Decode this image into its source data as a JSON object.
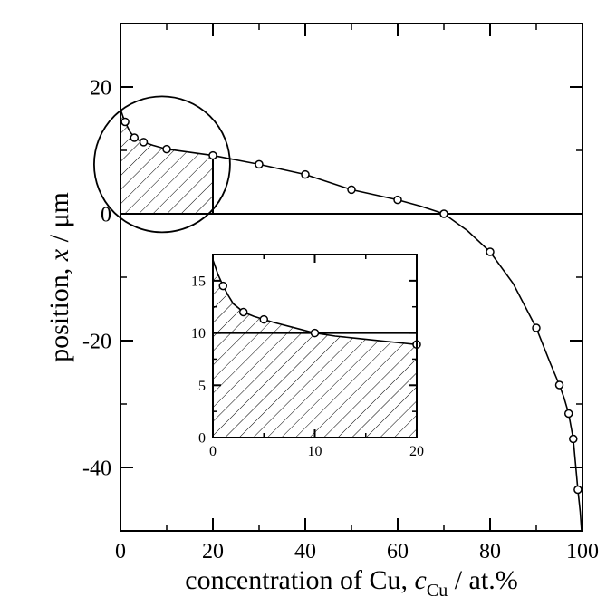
{
  "chart_data": [
    {
      "type": "line",
      "role": "main",
      "xlabel": {
        "text": "concentration of Cu, ",
        "var": "c",
        "sub": "Cu",
        "unit": " / at.%"
      },
      "ylabel": {
        "text": "position, ",
        "var": "x",
        "unit": " / μm"
      },
      "xlim": [
        0,
        100
      ],
      "ylim": [
        -50,
        30
      ],
      "xticks": [
        0,
        20,
        40,
        60,
        80,
        100
      ],
      "xtick_labels": [
        "0",
        "20",
        "40",
        "60",
        "80",
        "100"
      ],
      "yticks": [
        -40,
        -20,
        0,
        20
      ],
      "ytick_labels": [
        "-40",
        "-20",
        "0",
        "20"
      ],
      "horizontal_line": 0,
      "shaded_region": {
        "x": [
          0,
          20
        ],
        "between": "curve and y=0",
        "pattern": "diagonal hatch"
      },
      "series": [
        {
          "markers": {
            "x": [
              1,
              3,
              5,
              10,
              20,
              30,
              40,
              50,
              60,
              70,
              80,
              90,
              95,
              97,
              98,
              99
            ],
            "y": [
              14.5,
              12.0,
              11.3,
              10.2,
              9.2,
              7.8,
              6.2,
              3.8,
              2.2,
              0,
              -6,
              -18,
              -27,
              -31.5,
              -35.5,
              -43.5
            ]
          },
          "curve": {
            "x": [
              0,
              0.5,
              1,
              2,
              3,
              4,
              5,
              7,
              10,
              15,
              20,
              25,
              30,
              35,
              40,
              45,
              50,
              55,
              60,
              65,
              70,
              75,
              80,
              85,
              90,
              93,
              95,
              96,
              97,
              98,
              99,
              99.5,
              100
            ],
            "y": [
              16.5,
              15.4,
              14.5,
              13.0,
              12.0,
              11.6,
              11.3,
              10.8,
              10.2,
              9.7,
              9.2,
              8.5,
              7.8,
              7.0,
              6.2,
              5.0,
              3.8,
              3.0,
              2.2,
              1.2,
              0,
              -2.6,
              -6,
              -11,
              -18,
              -23.5,
              -27,
              -29,
              -31.5,
              -35.5,
              -43.5,
              -47,
              -52
            ]
          }
        }
      ],
      "annotation": {
        "type": "circle",
        "center": [
          9,
          7.8
        ],
        "note": "magnified region"
      }
    },
    {
      "type": "line",
      "role": "inset",
      "xlim": [
        0,
        20
      ],
      "ylim": [
        0,
        17.5
      ],
      "xticks": [
        0,
        10,
        20
      ],
      "xtick_labels": [
        "0",
        "10",
        "20"
      ],
      "yticks": [
        0,
        5,
        10,
        15
      ],
      "ytick_labels": [
        "0",
        "5",
        "10",
        "15"
      ],
      "horizontal_line": 10,
      "shaded_region": {
        "x": [
          0,
          20
        ],
        "between": "curve and y=0",
        "pattern": "diagonal hatch"
      },
      "series": [
        {
          "markers": {
            "x": [
              1,
              3,
              5,
              10,
              20
            ],
            "y": [
              14.5,
              12.0,
              11.3,
              10.0,
              8.9
            ]
          },
          "curve": {
            "x": [
              0,
              0.5,
              1,
              1.5,
              2,
              3,
              4,
              5,
              6,
              8,
              10,
              12,
              14,
              16,
              18,
              20
            ],
            "y": [
              17.0,
              15.6,
              14.5,
              13.6,
              12.8,
              12.0,
              11.6,
              11.3,
              11.0,
              10.5,
              10.0,
              9.7,
              9.5,
              9.3,
              9.1,
              8.9
            ]
          }
        }
      ]
    }
  ]
}
